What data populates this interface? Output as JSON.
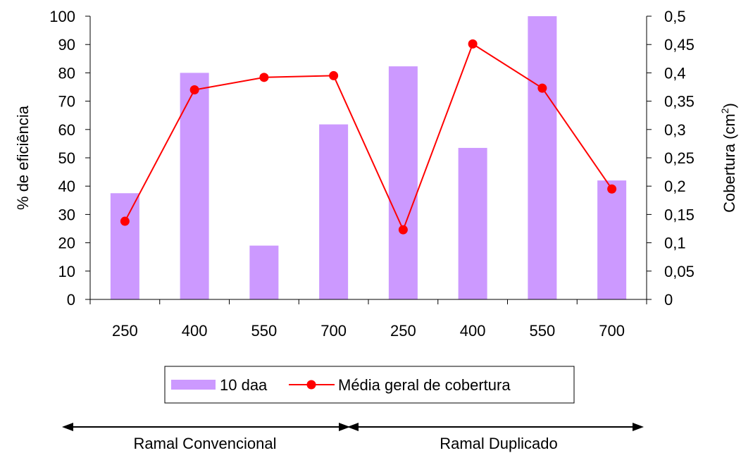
{
  "chart_data": {
    "type": "bar",
    "categories": [
      "250",
      "400",
      "550",
      "700",
      "250",
      "400",
      "550",
      "700"
    ],
    "series": [
      {
        "name": "10 daa",
        "type": "bar",
        "axis": "left",
        "color": "#cc99ff",
        "values": [
          37.5,
          80,
          19,
          61.8,
          82.3,
          53.5,
          100,
          42
        ]
      },
      {
        "name": "Média geral de cobertura",
        "type": "line",
        "axis": "right",
        "color": "#ff0000",
        "values": [
          0.138,
          0.37,
          0.392,
          0.395,
          0.123,
          0.451,
          0.373,
          0.195
        ]
      }
    ],
    "ylabel": "% de eficiência",
    "ylabel_right": "Cobertura (cm²)",
    "ylabel_right_base": "Cobertura (cm",
    "ylabel_right_sup": "2",
    "ylabel_right_close": ")",
    "ylim": [
      0,
      100
    ],
    "ylim_right": [
      0,
      0.5
    ],
    "yticks": [
      "0",
      "10",
      "20",
      "30",
      "40",
      "50",
      "60",
      "70",
      "80",
      "90",
      "100"
    ],
    "yticks_right": [
      "0",
      "0,05",
      "0,1",
      "0,15",
      "0,2",
      "0,25",
      "0,3",
      "0,35",
      "0,4",
      "0,45",
      "0,5"
    ],
    "grid": false,
    "legend_position": "bottom",
    "groups": [
      {
        "label": "Ramal Convencional",
        "categories": [
          "250",
          "400",
          "550",
          "700"
        ]
      },
      {
        "label": "Ramal Duplicado",
        "categories": [
          "250",
          "400",
          "550",
          "700"
        ]
      }
    ]
  }
}
